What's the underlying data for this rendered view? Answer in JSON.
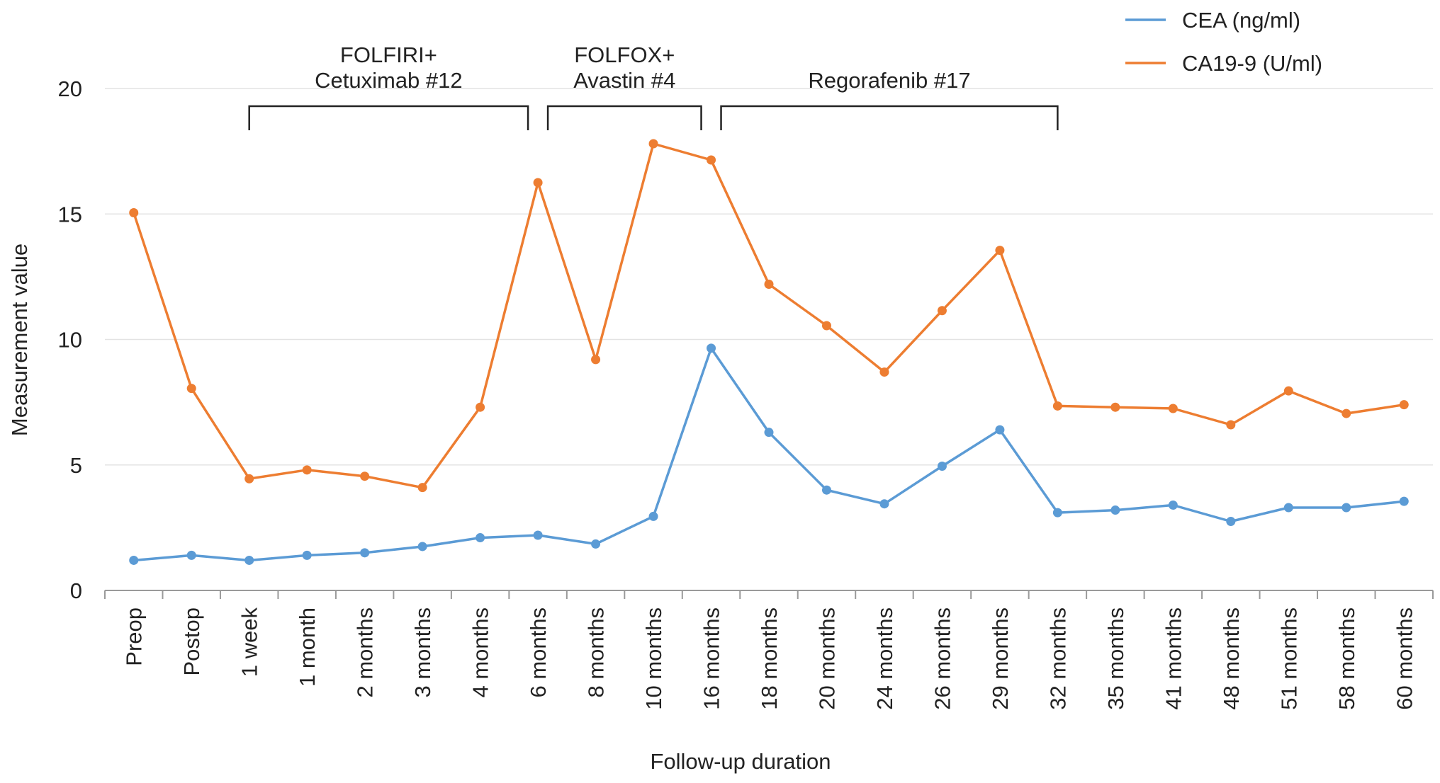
{
  "chart_data": {
    "type": "line",
    "title": "",
    "xlabel": "Follow-up duration",
    "ylabel": "Measurement value",
    "ylim": [
      0,
      20
    ],
    "yticks": [
      0,
      5,
      10,
      15,
      20
    ],
    "grid": "horizontal",
    "legend_position": "top-right",
    "categories": [
      "Preop",
      "Postop",
      "1 week",
      "1 month",
      "2 months",
      "3 months",
      "4 months",
      "6 months",
      "8 months",
      "10 months",
      "16 months",
      "18 months",
      "20 months",
      "24 months",
      "26 months",
      "29 months",
      "32 months",
      "35 months",
      "41 months",
      "48 months",
      "51 months",
      "58 months",
      "60 months"
    ],
    "series": [
      {
        "name": "CEA (ng/ml)",
        "color": "#5b9bd5",
        "values": [
          1.2,
          1.4,
          1.2,
          1.4,
          1.5,
          1.75,
          2.1,
          2.2,
          1.85,
          2.95,
          9.65,
          6.3,
          4.0,
          3.45,
          4.95,
          6.4,
          3.1,
          3.2,
          3.4,
          2.75,
          3.3,
          3.3,
          3.55
        ]
      },
      {
        "name": "CA19-9 (U/ml)",
        "color": "#ed7d31",
        "values": [
          15.05,
          8.05,
          4.45,
          4.8,
          4.55,
          4.1,
          7.3,
          16.25,
          9.2,
          17.8,
          17.15,
          12.2,
          10.55,
          8.7,
          11.15,
          13.55,
          7.35,
          7.3,
          7.25,
          6.6,
          7.95,
          7.05,
          7.4
        ]
      }
    ],
    "annotations": [
      {
        "label_lines": [
          "FOLFIRI+",
          "Cetuximab #12"
        ],
        "from": "1 week",
        "to": "6 months"
      },
      {
        "label_lines": [
          "FOLFOX+",
          "Avastin #4"
        ],
        "from": "6 months",
        "to": "16 months"
      },
      {
        "label_lines": [
          "Regorafenib #17"
        ],
        "from": "16 months",
        "to": "32 months"
      }
    ]
  }
}
